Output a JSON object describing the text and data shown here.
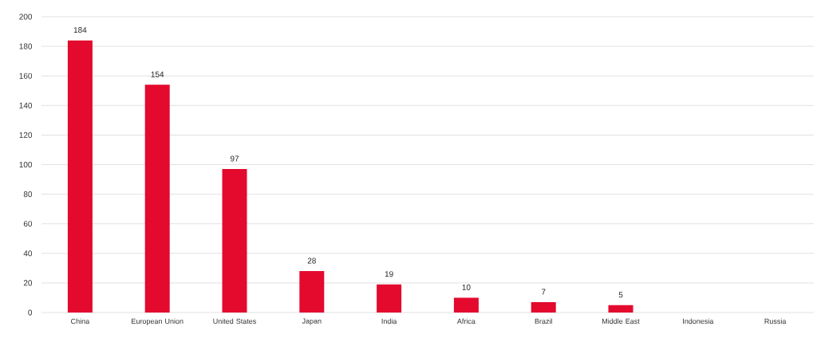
{
  "chart_data": {
    "type": "bar",
    "categories": [
      "China",
      "European Union",
      "United States",
      "Japan",
      "India",
      "Africa",
      "Brazil",
      "Middle East",
      "Indonesia",
      "Russia"
    ],
    "values": [
      184,
      154,
      97,
      28,
      19,
      10,
      7,
      5,
      null,
      null
    ],
    "value_labels": [
      "184",
      "154",
      "97",
      "28",
      "19",
      "10",
      "7",
      "5",
      null,
      null
    ],
    "color": "#e30a2e",
    "ylim": [
      0,
      200
    ],
    "yticks": [
      0,
      20,
      40,
      60,
      80,
      100,
      120,
      140,
      160,
      180,
      200
    ],
    "grid": "y"
  }
}
